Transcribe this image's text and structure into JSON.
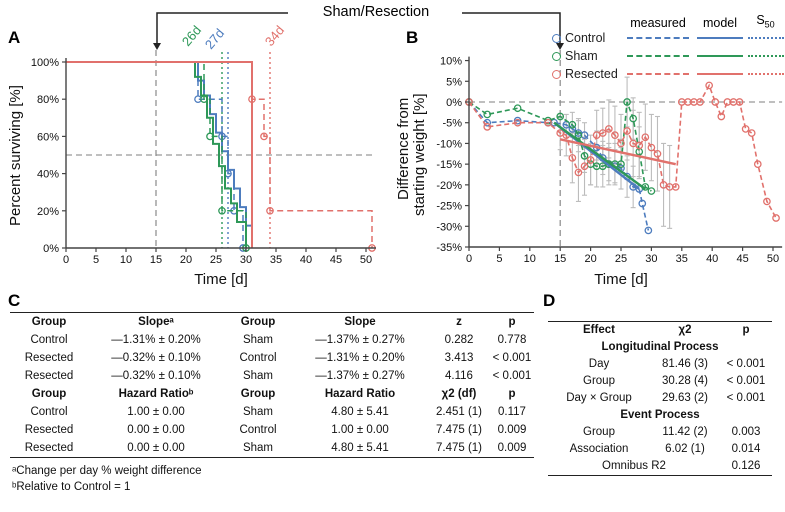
{
  "figure": {
    "top_annotation": "Sham/Resection",
    "panel_labels": {
      "a": "A",
      "b": "B",
      "c": "C",
      "d": "D"
    }
  },
  "colors": {
    "control": "#4d7cbe",
    "sham": "#2e9858",
    "resected": "#e1716c",
    "reference_gray": "#999999",
    "error_bar_gray": "#bcbcbc",
    "axis": "#444444",
    "text": "#111111"
  },
  "legend": {
    "columns": [
      "measured",
      "model"
    ],
    "s50": {
      "base": "S",
      "sub": "50"
    },
    "entries": [
      {
        "label": "Control",
        "key": "control"
      },
      {
        "label": "Sham",
        "key": "sham"
      },
      {
        "label": "Resected",
        "key": "resected"
      }
    ]
  },
  "chart_data": [
    {
      "type": "line",
      "panel": "A",
      "subtype": "kaplan-meier-survival",
      "xlabel": "Time [d]",
      "ylabel": "Percent surviving [%]",
      "xlim": [
        0,
        51.5
      ],
      "ylim": [
        0,
        100
      ],
      "grid": false,
      "xticks": {
        "values": [
          0,
          5,
          10,
          15,
          20,
          25,
          30,
          35,
          40,
          45,
          50
        ],
        "labels": [
          "0",
          "5",
          "10",
          "15",
          "20",
          "25",
          "30",
          "35",
          "40",
          "45",
          "50"
        ]
      },
      "yticks": {
        "values": [
          0,
          20,
          40,
          60,
          80,
          100
        ],
        "labels": [
          "0%",
          "20%",
          "40%",
          "60%",
          "80%",
          "100%"
        ]
      },
      "reference_lines": {
        "h_dashed_pct": 50,
        "v_dashed_day": 15
      },
      "annotations": [
        {
          "text": "26d",
          "day": 26,
          "series": "sham"
        },
        {
          "text": "27d",
          "day": 27,
          "series": "control"
        },
        {
          "text": "34d",
          "day": 34,
          "series": "resected"
        }
      ],
      "series": [
        {
          "name": "Control",
          "key": "control",
          "s50_day": 27,
          "measured_steps": [
            [
              0,
              100
            ],
            [
              22,
              80
            ],
            [
              26,
              60
            ],
            [
              27,
              40
            ],
            [
              28,
              20
            ],
            [
              29.5,
              0
            ]
          ],
          "model_steps": [
            [
              0,
              100
            ],
            [
              22,
              90
            ],
            [
              23,
              82
            ],
            [
              24,
              72
            ],
            [
              25,
              62
            ],
            [
              26,
              52
            ],
            [
              27,
              42
            ],
            [
              28,
              32
            ],
            [
              29,
              22
            ],
            [
              30,
              12
            ],
            [
              31,
              0
            ]
          ]
        },
        {
          "name": "Sham",
          "key": "sham",
          "s50_day": 26,
          "measured_steps": [
            [
              0,
              100
            ],
            [
              23,
              80
            ],
            [
              24,
              60
            ],
            [
              26,
              20
            ],
            [
              30,
              0
            ]
          ],
          "model_steps": [
            [
              0,
              100
            ],
            [
              21.5,
              92
            ],
            [
              22.5,
              82
            ],
            [
              23.5,
              70
            ],
            [
              24.5,
              56
            ],
            [
              25.5,
              44
            ],
            [
              26.5,
              32
            ],
            [
              27.5,
              24
            ],
            [
              28.5,
              14
            ],
            [
              30,
              0
            ]
          ]
        },
        {
          "name": "Resected",
          "key": "resected",
          "s50_day": 34,
          "measured_steps": [
            [
              0,
              100
            ],
            [
              31,
              80
            ],
            [
              33,
              60
            ],
            [
              34,
              20
            ],
            [
              51,
              0
            ]
          ],
          "model_steps": [
            [
              0,
              100
            ],
            [
              31,
              0
            ]
          ]
        }
      ]
    },
    {
      "type": "line",
      "panel": "B",
      "subtype": "weight-change-scatter",
      "xlabel": "Time [d]",
      "ylabel": "Difference from starting weight [%]",
      "ylabel_lines": [
        "Difference from",
        "starting weight [%]"
      ],
      "xlim": [
        0,
        51.5
      ],
      "ylim": [
        -35,
        10
      ],
      "grid": false,
      "xticks": {
        "values": [
          0,
          5,
          10,
          15,
          20,
          25,
          30,
          35,
          40,
          45,
          50
        ],
        "labels": [
          "0",
          "5",
          "10",
          "15",
          "20",
          "25",
          "30",
          "35",
          "40",
          "45",
          "50"
        ]
      },
      "yticks": {
        "values": [
          10,
          5,
          0,
          -5,
          -10,
          -15,
          -20,
          -25,
          -30,
          -35
        ],
        "labels": [
          "10%",
          "5%",
          "0%",
          "-5%",
          "-10%",
          "-15%",
          "-20%",
          "-25%",
          "-30%",
          "-35%"
        ]
      },
      "reference_lines": {
        "h_dashed_pct": 0,
        "v_dashed_day": 15
      },
      "series": [
        {
          "name": "Control",
          "key": "control",
          "measured": [
            [
              0,
              0
            ],
            [
              3,
              -5
            ],
            [
              8,
              -4.5
            ],
            [
              13,
              -5
            ],
            [
              14,
              -5
            ],
            [
              16,
              -5.5
            ],
            [
              17,
              -6.5
            ],
            [
              18,
              -7.5,
              3
            ],
            [
              19,
              -8,
              3
            ],
            [
              21,
              -11,
              4
            ],
            [
              22,
              -13.5,
              4
            ],
            [
              23,
              -15,
              4
            ],
            [
              24,
              -15.5,
              4
            ],
            [
              25,
              -16,
              5
            ],
            [
              26,
              -18,
              5
            ],
            [
              27,
              -20.5,
              5
            ],
            [
              28,
              -21
            ],
            [
              28.5,
              -24.5
            ],
            [
              29.5,
              -31
            ]
          ],
          "model": [
            [
              14,
              -5
            ],
            [
              28,
              -21
            ]
          ]
        },
        {
          "name": "Sham",
          "key": "sham",
          "measured": [
            [
              0,
              0
            ],
            [
              3,
              -3
            ],
            [
              8,
              -1.5
            ],
            [
              13,
              -4.5
            ],
            [
              15,
              -3.5
            ],
            [
              17,
              -5.5,
              3
            ],
            [
              18,
              -8,
              4
            ],
            [
              19,
              -13,
              4
            ],
            [
              20,
              -15,
              5
            ],
            [
              21,
              -15.5,
              5
            ],
            [
              22,
              -15.5,
              5
            ],
            [
              23,
              -15,
              5
            ],
            [
              24,
              -15,
              5
            ],
            [
              25,
              -15,
              6
            ],
            [
              26,
              0,
              6
            ],
            [
              27,
              -4,
              5
            ],
            [
              28,
              -12,
              6
            ],
            [
              29,
              -20.5
            ],
            [
              30,
              -21.5
            ]
          ],
          "model": [
            [
              14,
              -5
            ],
            [
              29,
              -21
            ]
          ]
        },
        {
          "name": "Resected",
          "key": "resected",
          "measured": [
            [
              0,
              0
            ],
            [
              3,
              -6
            ],
            [
              8,
              -5
            ],
            [
              13,
              -5
            ],
            [
              15,
              -7.5,
              4
            ],
            [
              16,
              -8,
              5
            ],
            [
              17,
              -13.5,
              6
            ],
            [
              18,
              -17,
              7
            ],
            [
              19,
              -15.5,
              7
            ],
            [
              20,
              -14,
              6
            ],
            [
              21,
              -8,
              6
            ],
            [
              22,
              -7.5,
              6
            ],
            [
              23,
              -6.5,
              7
            ],
            [
              24,
              -8,
              7
            ],
            [
              25,
              -10,
              7
            ],
            [
              26,
              -7,
              7
            ],
            [
              27,
              -10,
              8
            ],
            [
              28,
              -10.5,
              8
            ],
            [
              29,
              -8.5,
              8
            ],
            [
              30,
              -11,
              8
            ],
            [
              31,
              -12.5,
              9
            ],
            [
              32,
              -20,
              10
            ],
            [
              33,
              -20.5,
              10
            ],
            [
              34,
              -20.5
            ],
            [
              35,
              0
            ],
            [
              36,
              0
            ],
            [
              37,
              0
            ],
            [
              38,
              0
            ],
            [
              39.5,
              4
            ],
            [
              40.5,
              0
            ],
            [
              41.5,
              -3.5
            ],
            [
              42.5,
              0
            ],
            [
              43.5,
              0
            ],
            [
              44.5,
              0
            ],
            [
              45.5,
              -6.5
            ],
            [
              46.5,
              -7.5
            ],
            [
              47.5,
              -15
            ],
            [
              49,
              -24
            ],
            [
              50.5,
              -28
            ]
          ],
          "model": [
            [
              15,
              -9
            ],
            [
              34,
              -15
            ]
          ]
        }
      ]
    }
  ],
  "table_c": {
    "header1": [
      "Group",
      "Slopeᵃ",
      "Group",
      "Slope",
      "z",
      "p"
    ],
    "rows1": [
      [
        "Control",
        "—1.31% ± 0.20%",
        "Sham",
        "—1.37% ± 0.27%",
        "0.282",
        "0.778"
      ],
      [
        "Resected",
        "—0.32% ± 0.10%",
        "Control",
        "—1.31% ± 0.20%",
        "3.413",
        "< 0.001"
      ],
      [
        "Resected",
        "—0.32% ± 0.10%",
        "Sham",
        "—1.37% ± 0.27%",
        "4.116",
        "< 0.001"
      ]
    ],
    "header2": [
      "Group",
      "Hazard Ratioᵇ",
      "Group",
      "Hazard Ratio",
      "χ2 (df)",
      "p"
    ],
    "rows2": [
      [
        "Control",
        "1.00 ± 0.00",
        "Sham",
        "4.80 ± 5.41",
        "2.451 (1)",
        "0.117"
      ],
      [
        "Resected",
        "0.00 ± 0.00",
        "Control",
        "1.00 ± 0.00",
        "7.475 (1)",
        "0.009"
      ],
      [
        "Resected",
        "0.00 ± 0.00",
        "Sham",
        "4.80 ± 5.41",
        "7.475 (1)",
        "0.009"
      ]
    ],
    "footnotes": [
      "ᵃChange per day % weight difference",
      "ᵇRelative to Control = 1"
    ]
  },
  "table_d": {
    "header": [
      "Effect",
      "χ2",
      "p"
    ],
    "sections": [
      {
        "title": "Longitudinal Process",
        "rows": [
          [
            "Day",
            "81.46 (3)",
            "< 0.001"
          ],
          [
            "Group",
            "30.28 (4)",
            "< 0.001"
          ],
          [
            "Day × Group",
            "29.63 (2)",
            "< 0.001"
          ]
        ]
      },
      {
        "title": "Event Process",
        "rows": [
          [
            "Group",
            "11.42 (2)",
            "0.003"
          ],
          [
            "Association",
            "6.02 (1)",
            "0.014"
          ]
        ]
      }
    ],
    "final_row": {
      "label": "Omnibus R2",
      "value": "0.126"
    }
  }
}
